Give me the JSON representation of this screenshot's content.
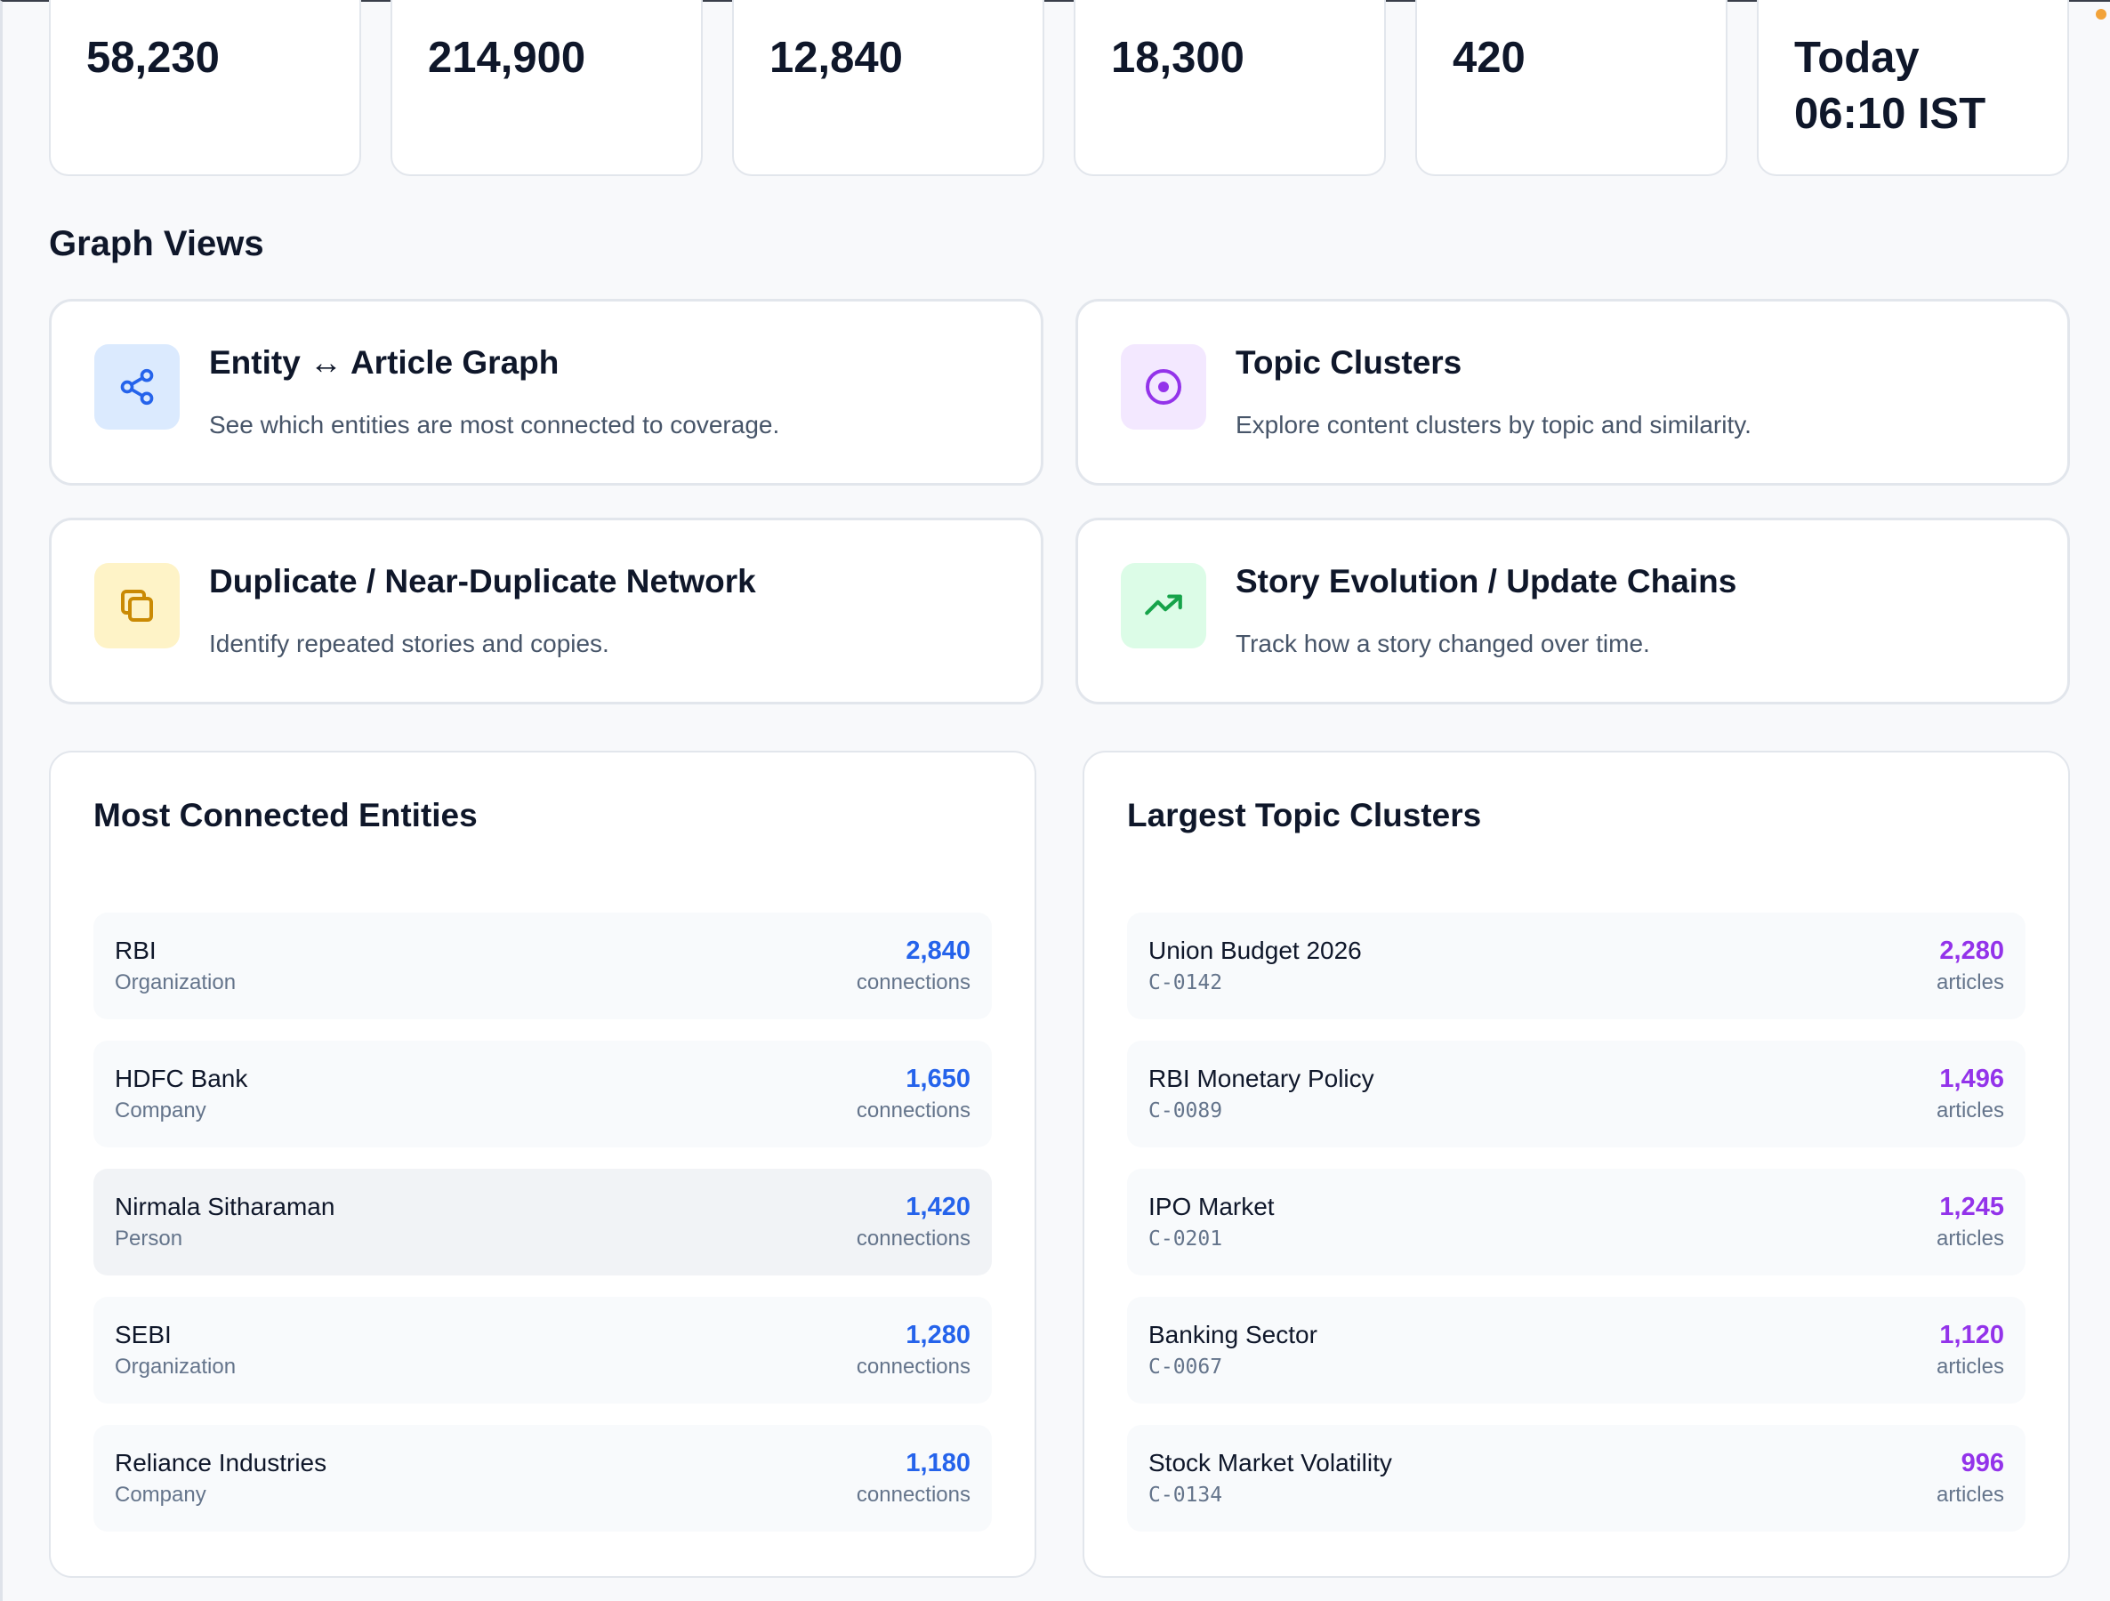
{
  "stats": [
    "58,230",
    "214,900",
    "12,840",
    "18,300",
    "420",
    "Today 06:10 IST"
  ],
  "graph_views": {
    "title": "Graph Views",
    "cards": [
      {
        "title": "Entity ↔ Article Graph",
        "desc": "See which entities are most connected to coverage.",
        "icon": "share-nodes-icon",
        "icon_bg": "#dbeafe",
        "icon_color": "#2563eb"
      },
      {
        "title": "Topic Clusters",
        "desc": "Explore content clusters by topic and similarity.",
        "icon": "target-circle-icon",
        "icon_bg": "#f3e8ff",
        "icon_color": "#9333ea"
      },
      {
        "title": "Duplicate / Near-Duplicate Network",
        "desc": "Identify repeated stories and copies.",
        "icon": "copy-icon",
        "icon_bg": "#fef3c7",
        "icon_color": "#ca8a04"
      },
      {
        "title": "Story Evolution / Update Chains",
        "desc": "Track how a story changed over time.",
        "icon": "trending-up-icon",
        "icon_bg": "#dcfce7",
        "icon_color": "#16a34a"
      }
    ]
  },
  "entities": {
    "title": "Most Connected Entities",
    "accent": "#2563eb",
    "items": [
      {
        "name": "RBI",
        "type": "Organization",
        "count": "2,840",
        "unit": "connections"
      },
      {
        "name": "HDFC Bank",
        "type": "Company",
        "count": "1,650",
        "unit": "connections"
      },
      {
        "name": "Nirmala Sitharaman",
        "type": "Person",
        "count": "1,420",
        "unit": "connections"
      },
      {
        "name": "SEBI",
        "type": "Organization",
        "count": "1,280",
        "unit": "connections"
      },
      {
        "name": "Reliance Industries",
        "type": "Company",
        "count": "1,180",
        "unit": "connections"
      }
    ]
  },
  "clusters": {
    "title": "Largest Topic Clusters",
    "accent": "#9333ea",
    "items": [
      {
        "name": "Union Budget 2026",
        "id": "C-0142",
        "count": "2,280",
        "unit": "articles"
      },
      {
        "name": "RBI Monetary Policy",
        "id": "C-0089",
        "count": "1,496",
        "unit": "articles"
      },
      {
        "name": "IPO Market",
        "id": "C-0201",
        "count": "1,245",
        "unit": "articles"
      },
      {
        "name": "Banking Sector",
        "id": "C-0067",
        "count": "1,120",
        "unit": "articles"
      },
      {
        "name": "Stock Market Volatility",
        "id": "C-0134",
        "count": "996",
        "unit": "articles"
      }
    ]
  }
}
